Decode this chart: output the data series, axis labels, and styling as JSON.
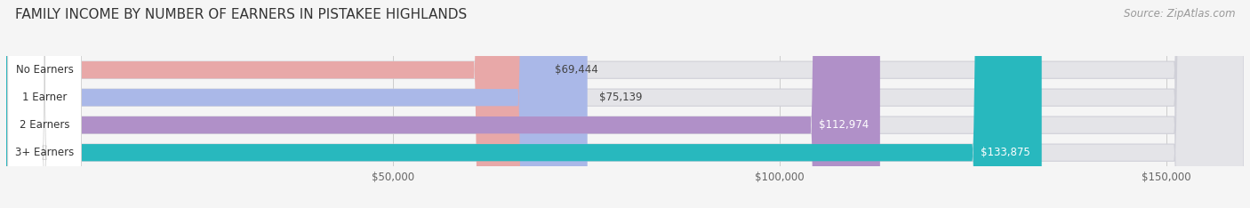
{
  "title": "FAMILY INCOME BY NUMBER OF EARNERS IN PISTAKEE HIGHLANDS",
  "source": "Source: ZipAtlas.com",
  "categories": [
    "No Earners",
    "1 Earner",
    "2 Earners",
    "3+ Earners"
  ],
  "values": [
    69444,
    75139,
    112974,
    133875
  ],
  "bar_colors": [
    "#e8a8a8",
    "#aab8e8",
    "#b090c8",
    "#28b8be"
  ],
  "label_colors": [
    "#444444",
    "#444444",
    "#ffffff",
    "#ffffff"
  ],
  "xlim": [
    0,
    160000
  ],
  "xticks": [
    50000,
    100000,
    150000
  ],
  "xtick_labels": [
    "$50,000",
    "$100,000",
    "$150,000"
  ],
  "background_color": "#f5f5f5",
  "bar_bg_color": "#e4e4e8",
  "title_fontsize": 11,
  "source_fontsize": 8.5
}
